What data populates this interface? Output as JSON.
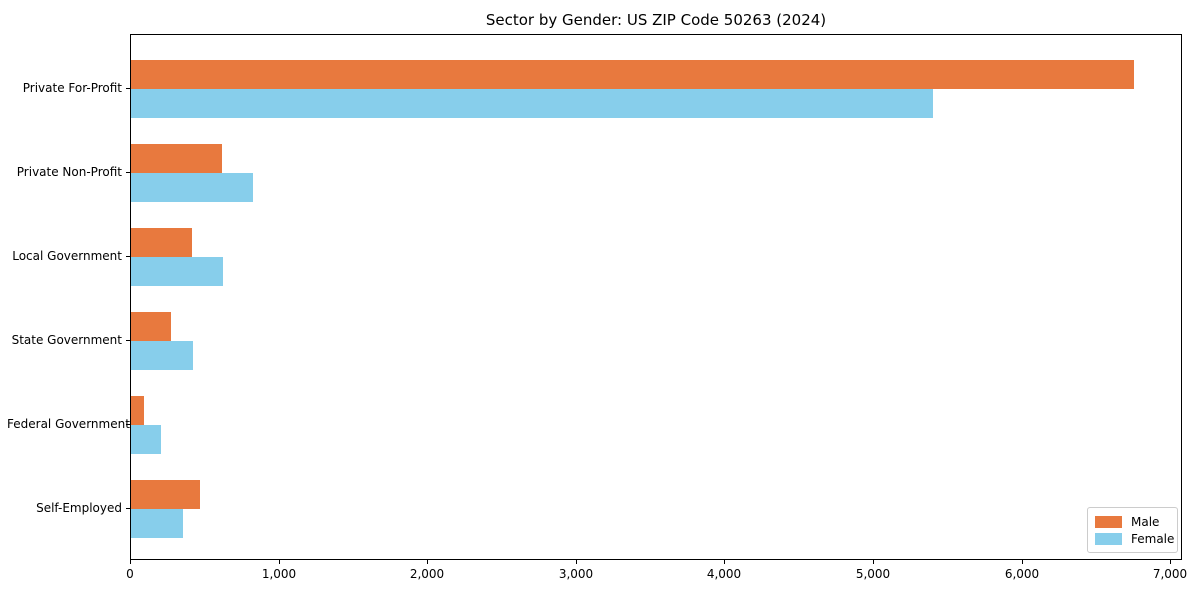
{
  "chart_data": {
    "type": "bar",
    "orientation": "horizontal",
    "title": "Sector by Gender: US ZIP Code 50263 (2024)",
    "categories": [
      "Private For-Profit",
      "Private Non-Profit",
      "Local Government",
      "State Government",
      "Federal Government",
      "Self-Employed"
    ],
    "series": [
      {
        "name": "Male",
        "color": "#e8793e",
        "values": [
          6750,
          610,
          410,
          270,
          85,
          465
        ]
      },
      {
        "name": "Female",
        "color": "#87ceeb",
        "values": [
          5400,
          820,
          620,
          420,
          200,
          350
        ]
      }
    ],
    "xlim": [
      0,
      7080
    ],
    "x_ticks": [
      0,
      1000,
      2000,
      3000,
      4000,
      5000,
      6000,
      7000
    ],
    "x_tick_labels": [
      "0",
      "1,000",
      "2,000",
      "3,000",
      "4,000",
      "5,000",
      "6,000",
      "7,000"
    ],
    "xlabel": "",
    "ylabel": "",
    "grid": false,
    "legend_position": "lower right",
    "background_color": "#ffffff",
    "spine_color": "#000000"
  }
}
